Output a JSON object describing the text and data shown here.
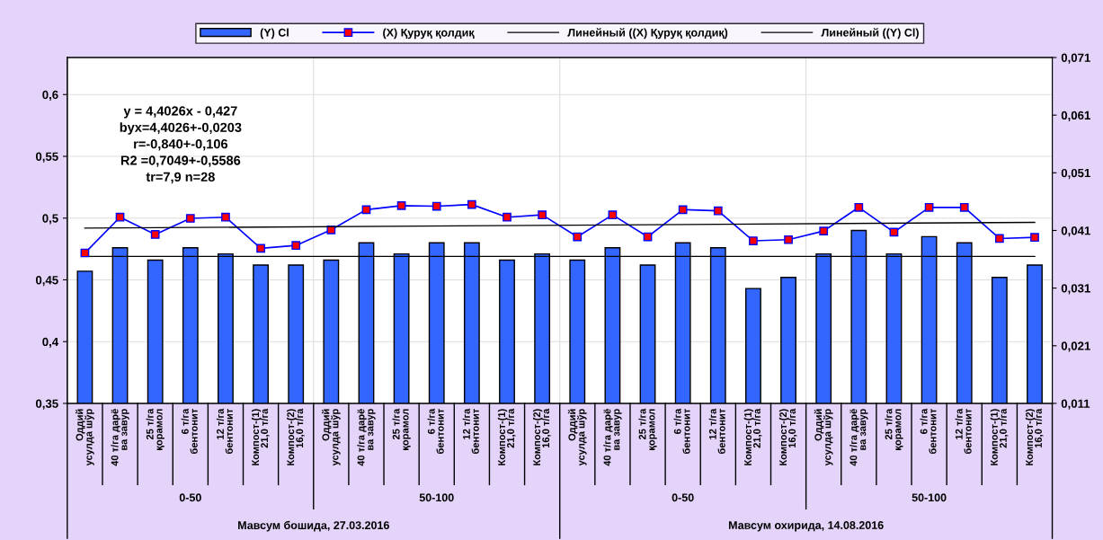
{
  "chart_data": {
    "type": "bar",
    "categories": [
      "Оддий\nусулда шўр",
      "40 т/га дарё\nва завур",
      "25 т/га\nқорамол",
      "6 т/га\nбентонит",
      "12 т/га\nбентонит",
      "Компост-(1)\n21,0 т/га",
      "Компост-(2)\n16,0 т/га",
      "Оддий\nусулда шўр",
      "40 т/га дарё\nва завур",
      "25 т/га\nқорамол",
      "6 т/га\nбентонит",
      "12 т/га\nбентонит",
      "Компост-(1)\n21,0 т/га",
      "Компост-(2)\n16,0 т/га",
      "Оддий\nусулда шўр",
      "40 т/га дарё\nва завур",
      "25 т/га\nқорамол",
      "6 т/га\nбентонит",
      "12 т/га\nбентонит",
      "Компост-(1)\n21,0 т/га",
      "Компост-(2)\n16,0 т/га",
      "Оддий\nусулда шўр",
      "40 т/га дарё\nва завур",
      "25 т/га\nқорамол",
      "6 т/га\nбентонит",
      "12 т/га\nбентонит",
      "Компост-(1)\n21,0 т/га",
      "Компост-(2)\n16,0 т/га"
    ],
    "series": [
      {
        "name": "(Y) Cl",
        "color": "#3366ff",
        "values": [
          0.457,
          0.476,
          0.466,
          0.476,
          0.471,
          0.462,
          0.462,
          0.466,
          0.48,
          0.471,
          0.48,
          0.48,
          0.466,
          0.471,
          0.466,
          0.476,
          0.462,
          0.48,
          0.476,
          0.443,
          0.452,
          0.471,
          0.49,
          0.471,
          0.485,
          0.48,
          0.452,
          0.462
        ]
      },
      {
        "name": "(X) Қуруқ қолдиқ",
        "type": "line",
        "color": "#0000ff",
        "axis": "y2",
        "marker": "square",
        "values": [
          0.0371,
          0.0433,
          0.0403,
          0.0431,
          0.0433,
          0.0379,
          0.0384,
          0.0411,
          0.0446,
          0.0453,
          0.0452,
          0.0455,
          0.0433,
          0.0437,
          0.0399,
          0.0437,
          0.0399,
          0.0446,
          0.0444,
          0.0392,
          0.0394,
          0.0409,
          0.045,
          0.0407,
          0.045,
          0.045,
          0.0396,
          0.0398
        ]
      },
      {
        "name": "Линейный ((X) Қуруқ қолдиқ)",
        "type": "line",
        "color": "#000000",
        "axis": "y2",
        "marker": "none",
        "values": [
          0.0414,
          null,
          null,
          null,
          null,
          null,
          null,
          null,
          null,
          null,
          null,
          null,
          null,
          null,
          null,
          null,
          null,
          null,
          null,
          null,
          null,
          null,
          null,
          null,
          null,
          null,
          null,
          0.0424
        ]
      },
      {
        "name": "Линейный ((Y) Cl)",
        "type": "line",
        "color": "#000000",
        "marker": "none",
        "values": [
          0.469,
          null,
          null,
          null,
          null,
          null,
          null,
          null,
          null,
          null,
          null,
          null,
          null,
          null,
          null,
          null,
          null,
          null,
          null,
          null,
          null,
          null,
          null,
          null,
          null,
          null,
          null,
          0.469
        ]
      }
    ],
    "ylim": [
      0.35,
      0.63
    ],
    "yticks": [
      {
        "value": 0.35,
        "label": "0,35"
      },
      {
        "value": 0.4,
        "label": "0,4"
      },
      {
        "value": 0.45,
        "label": "0,45"
      },
      {
        "value": 0.5,
        "label": "0,5"
      },
      {
        "value": 0.55,
        "label": "0,55"
      },
      {
        "value": 0.6,
        "label": "0,6"
      }
    ],
    "y2lim": [
      0.011,
      0.071
    ],
    "y2ticks": [
      {
        "value": 0.011,
        "label": "0,011"
      },
      {
        "value": 0.021,
        "label": "0,021"
      },
      {
        "value": 0.031,
        "label": "0,031"
      },
      {
        "value": 0.041,
        "label": "0,041"
      },
      {
        "value": 0.051,
        "label": "0,051"
      },
      {
        "value": 0.061,
        "label": "0,061"
      },
      {
        "value": 0.071,
        "label": "0,071"
      }
    ],
    "annotations": [
      "y = 4,4026x - 0,427\nbyx=4,4026+-0,0203\nr=-0,840+-0,106\nR2 =0,7049+-0,5586\ntr=7,9 n=28",
      "0-50",
      "50-100",
      "0-50",
      "50-100",
      "Мавсум бошида, 27.03.2016",
      "Мавсум охирида, 14.08.2016"
    ],
    "grid": true,
    "legend": "top"
  }
}
